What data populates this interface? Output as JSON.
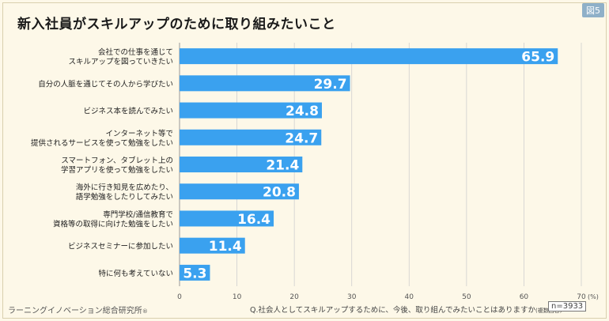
{
  "header": {
    "title": "新入社員がスキルアップのために取り組みたいこと",
    "figure_badge": "図5"
  },
  "footer": {
    "source": "ラーニングイノベーション総合研究所",
    "source_mark": "®",
    "question": "Q.社会人としてスキルアップするために、今後、取り組んでみたいことはありますか",
    "question_note": "(複数回答)",
    "sample": "n=3933"
  },
  "colors": {
    "bar": "#3aa1ef",
    "value_text": "#ffffff",
    "background": "#fdf8e8",
    "grid": "#cfcfcf"
  },
  "chart_data": {
    "type": "bar",
    "orientation": "horizontal",
    "categories": [
      [
        "会社での仕事を通じて",
        "スキルアップを図っていきたい"
      ],
      [
        "自分の人脈を通じてその人から学びたい"
      ],
      [
        "ビジネス本を読んでみたい"
      ],
      [
        "インターネット等で",
        "提供されるサービスを使って勉強をしたい"
      ],
      [
        "スマートフォン、タブレット上の",
        "学習アプリを使って勉強をしたい"
      ],
      [
        "海外に行き知見を広めたり、",
        "語学勉強をしたりしてみたい"
      ],
      [
        "専門学校/通信教育で",
        "資格等の取得に向けた勉強をしたい"
      ],
      [
        "ビジネスセミナーに参加したい"
      ],
      [
        "特に何も考えていない"
      ]
    ],
    "values": [
      65.9,
      29.7,
      24.8,
      24.7,
      21.4,
      20.8,
      16.4,
      11.4,
      5.3
    ],
    "value_labels": [
      "65.9",
      "29.7",
      "24.8",
      "24.7",
      "21.4",
      "20.8",
      "16.4",
      "11.4",
      "5.3"
    ],
    "xlim": [
      0,
      70
    ],
    "xticks": [
      "0",
      "10",
      "20",
      "30",
      "40",
      "50",
      "60",
      "70"
    ],
    "x_unit": "(%)",
    "grid": true
  }
}
